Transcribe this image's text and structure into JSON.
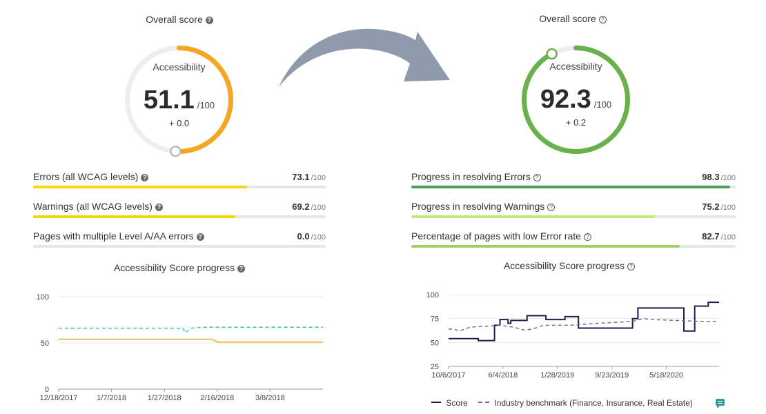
{
  "colors": {
    "yellow": "#f5d90a",
    "orange_gauge": "#f5a623",
    "green_gauge": "#6ab04c",
    "green_dark": "#4a9e57",
    "green_light": "#c6e87a",
    "green_mid": "#a4d26a",
    "teal_dashed": "#2ec4c6",
    "orange_line": "#f5a623",
    "navy": "#1f1c52",
    "arrow": "#8f9aab"
  },
  "left": {
    "overall_title": "Overall score",
    "gauge": {
      "label": "Accessibility",
      "score": "51.1",
      "of": "/100",
      "delta": "+ 0.0",
      "fraction": 0.511
    },
    "metrics": [
      {
        "label": "Errors (all WCAG levels)",
        "value": "73.1",
        "of": "/100",
        "fraction": 0.731
      },
      {
        "label": "Warnings (all WCAG levels)",
        "value": "69.2",
        "of": "/100",
        "fraction": 0.692
      },
      {
        "label": "Pages with multiple Level A/AA errors",
        "value": "0.0",
        "of": "/100",
        "fraction": 0.0
      }
    ],
    "progress_title": "Accessibility Score progress"
  },
  "right": {
    "overall_title": "Overall score",
    "gauge": {
      "label": "Accessibility",
      "score": "92.3",
      "of": "/100",
      "delta": "+ 0.2",
      "fraction": 0.923
    },
    "metrics": [
      {
        "label": "Progress in resolving Errors",
        "value": "98.3",
        "of": "/100",
        "fraction": 0.983
      },
      {
        "label": "Progress in resolving Warnings",
        "value": "75.2",
        "of": "/100",
        "fraction": 0.752
      },
      {
        "label": "Percentage of pages with low Error rate",
        "value": "82.7",
        "of": "/100",
        "fraction": 0.827
      }
    ],
    "progress_title": "Accessibility Score progress",
    "legend": {
      "score": "Score",
      "benchmark": "Industry benchmark (Finance, Insurance, Real Estate)"
    }
  },
  "chart_data": [
    {
      "type": "line",
      "title": "Accessibility Score progress",
      "x_ticks": [
        "12/18/2017",
        "1/7/2018",
        "1/27/2018",
        "2/16/2018",
        "3/8/2018"
      ],
      "y_ticks": [
        0,
        50,
        100
      ],
      "ylim": [
        0,
        100
      ],
      "grid": true,
      "series": [
        {
          "style": "dashed",
          "values": [
            [
              0,
              66
            ],
            [
              0.47,
              66
            ],
            [
              0.48,
              61
            ],
            [
              0.5,
              66
            ],
            [
              0.55,
              67
            ],
            [
              1,
              67
            ]
          ]
        },
        {
          "style": "solid",
          "values": [
            [
              0,
              54
            ],
            [
              0.58,
              54
            ],
            [
              0.6,
              51
            ],
            [
              1,
              51
            ]
          ]
        }
      ]
    },
    {
      "type": "line",
      "title": "Accessibility Score progress",
      "x_ticks": [
        "10/6/2017",
        "6/4/2018",
        "1/28/2019",
        "9/23/2019",
        "5/18/2020"
      ],
      "y_ticks": [
        25,
        50,
        75,
        100
      ],
      "ylim": [
        25,
        100
      ],
      "grid": true,
      "series": [
        {
          "name": "Score",
          "style": "solid",
          "values": [
            [
              0,
              54
            ],
            [
              0.11,
              54
            ],
            [
              0.11,
              52
            ],
            [
              0.17,
              52
            ],
            [
              0.17,
              68
            ],
            [
              0.19,
              68
            ],
            [
              0.19,
              74
            ],
            [
              0.22,
              74
            ],
            [
              0.22,
              70
            ],
            [
              0.23,
              70
            ],
            [
              0.23,
              73
            ],
            [
              0.29,
              73
            ],
            [
              0.29,
              78
            ],
            [
              0.36,
              78
            ],
            [
              0.36,
              74
            ],
            [
              0.43,
              74
            ],
            [
              0.43,
              77
            ],
            [
              0.48,
              77
            ],
            [
              0.48,
              65
            ],
            [
              0.68,
              65
            ],
            [
              0.68,
              75
            ],
            [
              0.7,
              75
            ],
            [
              0.7,
              86
            ],
            [
              0.87,
              86
            ],
            [
              0.87,
              62
            ],
            [
              0.91,
              62
            ],
            [
              0.91,
              88
            ],
            [
              0.96,
              88
            ],
            [
              0.96,
              92
            ],
            [
              1,
              92
            ]
          ]
        },
        {
          "name": "Industry benchmark (Finance, Insurance, Real Estate)",
          "style": "dashed",
          "values": [
            [
              0,
              64
            ],
            [
              0.02,
              64
            ],
            [
              0.04,
              62
            ],
            [
              0.08,
              66
            ],
            [
              0.14,
              67
            ],
            [
              0.19,
              68
            ],
            [
              0.24,
              66
            ],
            [
              0.28,
              63
            ],
            [
              0.31,
              64
            ],
            [
              0.35,
              68
            ],
            [
              0.45,
              68
            ],
            [
              0.55,
              70
            ],
            [
              0.68,
              72
            ],
            [
              0.72,
              75
            ],
            [
              0.75,
              74
            ],
            [
              0.84,
              73
            ],
            [
              0.93,
              72
            ],
            [
              1,
              72
            ]
          ]
        }
      ]
    }
  ]
}
